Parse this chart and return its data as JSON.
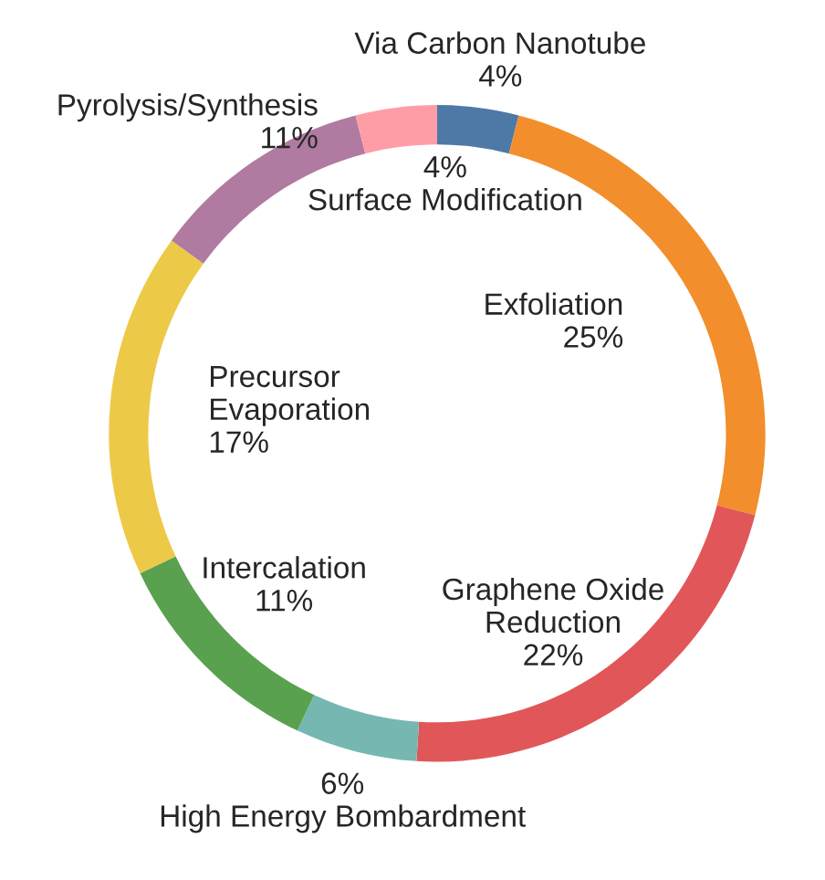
{
  "chart_data": {
    "type": "donut",
    "categories": [
      "Via Carbon Nanotube",
      "Exfoliation",
      "Graphene Oxide\nReduction",
      "High Energy Bombardment",
      "Intercalation",
      "Precursor\nEvaporation",
      "Pyrolysis/Synthesis",
      "Surface Modification"
    ],
    "values": [
      4,
      25,
      22,
      6,
      11,
      17,
      11,
      4
    ],
    "value_labels": [
      "4%",
      "25%",
      "22%",
      "6%",
      "11%",
      "17%",
      "11%",
      "4%"
    ],
    "colors": [
      "#4e79a7",
      "#f28e2b",
      "#e15759",
      "#76b7b2",
      "#59a14f",
      "#edc948",
      "#b07aa1",
      "#ff9da7"
    ]
  }
}
